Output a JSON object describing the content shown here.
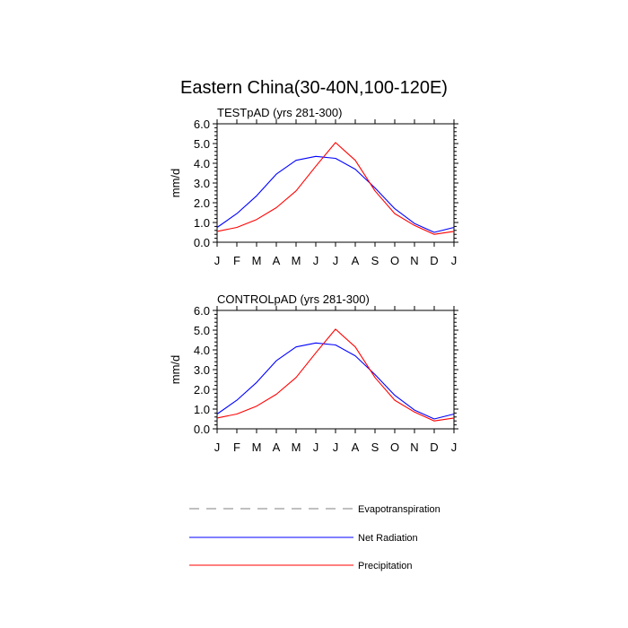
{
  "figure_title": "Eastern China(30-40N,100-120E)",
  "colors": {
    "evapotranspiration": "#808080",
    "net_radiation": "#0000ff",
    "precipitation": "#ff0000"
  },
  "legend": [
    {
      "key": "evapotranspiration",
      "label": "Evapotranspiration",
      "style": "dashed"
    },
    {
      "key": "net_radiation",
      "label": "Net Radiation",
      "style": "solid"
    },
    {
      "key": "precipitation",
      "label": "Precipitation",
      "style": "solid"
    }
  ],
  "chart_data": [
    {
      "type": "line",
      "title": "TESTpAD (yrs 281-300)",
      "ylabel": "mm/d",
      "ylim": [
        0,
        6
      ],
      "yticks": [
        "0.0",
        "1.0",
        "2.0",
        "3.0",
        "4.0",
        "5.0",
        "6.0"
      ],
      "categories": [
        "J",
        "F",
        "M",
        "A",
        "M",
        "J",
        "J",
        "A",
        "S",
        "O",
        "N",
        "D",
        "J"
      ],
      "series": [
        {
          "name": "Net Radiation",
          "key": "net_radiation",
          "values": [
            0.75,
            1.45,
            2.35,
            3.45,
            4.15,
            4.35,
            4.25,
            3.7,
            2.75,
            1.7,
            0.95,
            0.5,
            0.75
          ]
        },
        {
          "name": "Precipitation",
          "key": "precipitation",
          "values": [
            0.55,
            0.75,
            1.15,
            1.75,
            2.6,
            3.85,
            5.05,
            4.15,
            2.6,
            1.45,
            0.85,
            0.4,
            0.55
          ]
        }
      ]
    },
    {
      "type": "line",
      "title": "CONTROLpAD (yrs 281-300)",
      "ylabel": "mm/d",
      "ylim": [
        0,
        6
      ],
      "yticks": [
        "0.0",
        "1.0",
        "2.0",
        "3.0",
        "4.0",
        "5.0",
        "6.0"
      ],
      "categories": [
        "J",
        "F",
        "M",
        "A",
        "M",
        "J",
        "J",
        "A",
        "S",
        "O",
        "N",
        "D",
        "J"
      ],
      "series": [
        {
          "name": "Net Radiation",
          "key": "net_radiation",
          "values": [
            0.75,
            1.45,
            2.35,
            3.45,
            4.15,
            4.35,
            4.25,
            3.7,
            2.75,
            1.7,
            0.95,
            0.5,
            0.75
          ]
        },
        {
          "name": "Precipitation",
          "key": "precipitation",
          "values": [
            0.55,
            0.75,
            1.15,
            1.75,
            2.6,
            3.85,
            5.05,
            4.15,
            2.6,
            1.45,
            0.85,
            0.4,
            0.55
          ]
        }
      ]
    }
  ]
}
